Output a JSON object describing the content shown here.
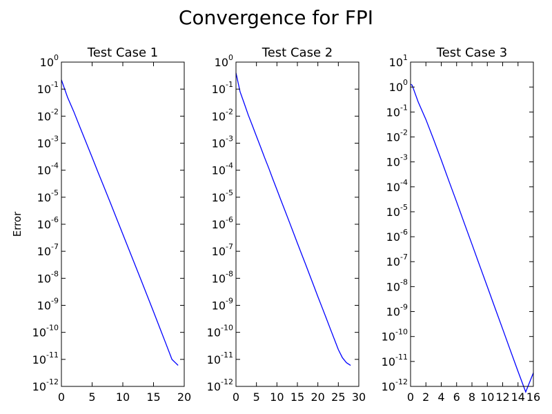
{
  "title": "Convergence for FPI",
  "colors": {
    "line": "#0000ff",
    "axes": "#000000",
    "background": "#ffffff"
  },
  "chart_data": [
    {
      "type": "line",
      "title": "Test Case 1",
      "xlabel": "",
      "ylabel": "Error",
      "yscale": "log",
      "xlim": [
        0,
        20
      ],
      "ylim": [
        1e-12,
        1
      ],
      "xticks": [
        0,
        5,
        10,
        15,
        20
      ],
      "yticks_exp": [
        0,
        -1,
        -2,
        -3,
        -4,
        -5,
        -6,
        -7,
        -8,
        -9,
        -10,
        -11,
        -12
      ],
      "grid": false,
      "series": [
        {
          "x": [
            0,
            1,
            2,
            3,
            4,
            5,
            6,
            7,
            8,
            9,
            10,
            11,
            12,
            13,
            14,
            15,
            16,
            17,
            18,
            19
          ],
          "y": [
            0.22,
            0.05,
            0.015,
            0.004,
            0.0011,
            0.0003,
            8e-05,
            2.2e-05,
            6e-06,
            1.6e-06,
            4.3e-07,
            1.15e-07,
            3.1e-08,
            8.3e-09,
            2.2e-09,
            5.8e-10,
            1.5e-10,
            3.9e-11,
            1e-11,
            6e-12
          ]
        }
      ]
    },
    {
      "type": "line",
      "title": "Test Case 2",
      "xlabel": "",
      "ylabel": "",
      "yscale": "log",
      "xlim": [
        0,
        30
      ],
      "ylim": [
        1e-12,
        1
      ],
      "xticks": [
        0,
        5,
        10,
        15,
        20,
        25,
        30
      ],
      "yticks_exp": [
        0,
        -1,
        -2,
        -3,
        -4,
        -5,
        -6,
        -7,
        -8,
        -9,
        -10,
        -11,
        -12
      ],
      "grid": false,
      "series": [
        {
          "x": [
            0,
            1,
            2,
            3,
            4,
            5,
            6,
            7,
            8,
            9,
            10,
            11,
            12,
            13,
            14,
            15,
            16,
            17,
            18,
            19,
            20,
            21,
            22,
            23,
            24,
            25,
            26,
            27,
            28
          ],
          "y": [
            0.4,
            0.08,
            0.03,
            0.011,
            0.0045,
            0.0018,
            0.00073,
            0.00029,
            0.00012,
            4.7e-05,
            1.9e-05,
            7.6e-06,
            3.1e-06,
            1.25e-06,
            5e-07,
            2e-07,
            8.1e-08,
            3.3e-08,
            1.32e-08,
            5.3e-09,
            2.1e-09,
            8.6e-10,
            3.5e-10,
            1.4e-10,
            5.7e-11,
            2.3e-11,
            1.15e-11,
            7.5e-12,
            6e-12
          ]
        }
      ]
    },
    {
      "type": "line",
      "title": "Test Case 3",
      "xlabel": "",
      "ylabel": "",
      "yscale": "log",
      "xlim": [
        0,
        16
      ],
      "ylim": [
        1e-12,
        10
      ],
      "xticks": [
        0,
        2,
        4,
        6,
        8,
        10,
        12,
        14,
        16
      ],
      "yticks_exp": [
        1,
        0,
        -1,
        -2,
        -3,
        -4,
        -5,
        -6,
        -7,
        -8,
        -9,
        -10,
        -11,
        -12
      ],
      "grid": false,
      "series": [
        {
          "x": [
            0,
            0.2,
            1,
            2,
            3,
            4,
            5,
            6,
            7,
            8,
            9,
            10,
            11,
            12,
            13,
            14,
            15,
            16
          ],
          "y": [
            1.3,
            1.2,
            0.25,
            0.05,
            0.008,
            0.0012,
            0.00017,
            2.5e-05,
            3.5e-06,
            5e-07,
            7e-08,
            1e-08,
            1.4e-09,
            2e-10,
            2.8e-11,
            4e-12,
            6e-13,
            3.5e-12
          ]
        }
      ]
    }
  ]
}
